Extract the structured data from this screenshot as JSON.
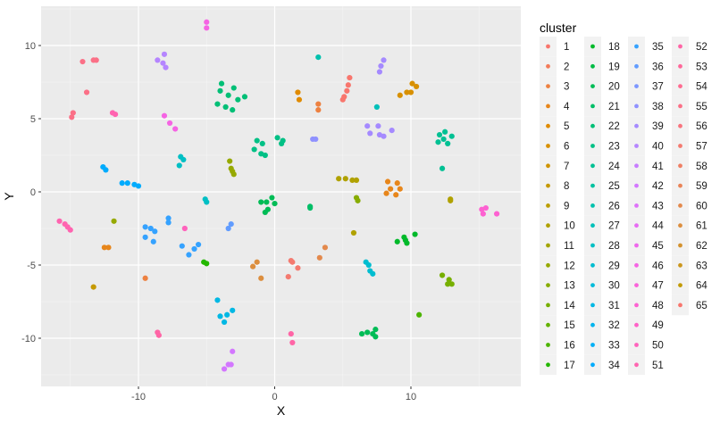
{
  "chart_data": {
    "type": "scatter",
    "title": "",
    "xlabel": "X",
    "ylabel": "Y",
    "xlim": [
      -17.2,
      18
    ],
    "ylim": [
      -13.2,
      12.8
    ],
    "x_ticks": [
      -10,
      0,
      10
    ],
    "y_ticks": [
      -10,
      -5,
      0,
      5,
      10
    ],
    "grid": true,
    "legend_title": "cluster",
    "legend_position": "right",
    "clusters": [
      "1",
      "2",
      "3",
      "4",
      "5",
      "6",
      "7",
      "8",
      "9",
      "10",
      "11",
      "12",
      "13",
      "14",
      "15",
      "16",
      "17",
      "18",
      "19",
      "20",
      "21",
      "22",
      "23",
      "24",
      "25",
      "26",
      "27",
      "28",
      "29",
      "30",
      "31",
      "32",
      "33",
      "34",
      "35",
      "36",
      "37",
      "38",
      "39",
      "40",
      "41",
      "42",
      "43",
      "44",
      "45",
      "46",
      "47",
      "48",
      "49",
      "50",
      "51",
      "52",
      "53",
      "54",
      "55",
      "56",
      "57",
      "58",
      "59",
      "60",
      "61",
      "62",
      "63",
      "64",
      "65"
    ],
    "colors": [
      "#F8766D",
      "#F37B59",
      "#ED8141",
      "#E7861B",
      "#E08B00",
      "#D89000",
      "#CF9400",
      "#C59900",
      "#BB9D00",
      "#B0A100",
      "#A3A500",
      "#96A900",
      "#87AC00",
      "#77AF00",
      "#64B200",
      "#4CB400",
      "#24B700",
      "#00B92A",
      "#00BB44",
      "#00BC56",
      "#00BE67",
      "#00BF76",
      "#00C085",
      "#00C093",
      "#00C1A0",
      "#00C1AD",
      "#00C0B9",
      "#00BFC4",
      "#00BDD0",
      "#00BBDA",
      "#00B8E4",
      "#00B4EE",
      "#00B0F6",
      "#00ABFD",
      "#35A2FF",
      "#619CFF",
      "#7C96FF",
      "#8F91FF",
      "#A58AFF",
      "#B585FF",
      "#C77CFF",
      "#D377FF",
      "#DE71F9",
      "#E76BF3",
      "#EE67EB",
      "#F564E3",
      "#FA62D9",
      "#FD61D1",
      "#FF61C7",
      "#FF62BC",
      "#FF64B0",
      "#FF65A6",
      "#FF689A",
      "#FF6C91",
      "#FB7087",
      "#F8747E",
      "#F47A70",
      "#EF7F64",
      "#E98458",
      "#E3894C",
      "#DC8E3E",
      "#D4922E",
      "#CB961D",
      "#C29A06",
      "#F8766D"
    ],
    "points": [
      {
        "c": "1",
        "x": 5.3,
        "y": 6.9
      },
      {
        "c": "1",
        "x": 5.5,
        "y": 7.8
      },
      {
        "c": "1",
        "x": 5.1,
        "y": 6.5
      },
      {
        "c": "1",
        "x": 5.0,
        "y": 6.3
      },
      {
        "c": "1",
        "x": 5.4,
        "y": 7.3
      },
      {
        "c": "3",
        "x": 3.2,
        "y": 6.0
      },
      {
        "c": "3",
        "x": 3.2,
        "y": 5.6
      },
      {
        "c": "5",
        "x": 1.7,
        "y": 6.8
      },
      {
        "c": "5",
        "x": 1.8,
        "y": 6.3
      },
      {
        "c": "6",
        "x": 9.2,
        "y": 6.6
      },
      {
        "c": "6",
        "x": 9.7,
        "y": 6.8
      },
      {
        "c": "6",
        "x": 10.0,
        "y": 6.8
      },
      {
        "c": "6",
        "x": 10.1,
        "y": 7.4
      },
      {
        "c": "6",
        "x": 10.4,
        "y": 7.2
      },
      {
        "c": "4",
        "x": 8.3,
        "y": 0.7
      },
      {
        "c": "4",
        "x": 9.0,
        "y": 0.6
      },
      {
        "c": "4",
        "x": 8.5,
        "y": 0.2
      },
      {
        "c": "4",
        "x": 9.2,
        "y": 0.2
      },
      {
        "c": "4",
        "x": 8.2,
        "y": -0.1
      },
      {
        "c": "4",
        "x": 8.9,
        "y": -0.2
      },
      {
        "c": "4",
        "x": -12.5,
        "y": -3.8
      },
      {
        "c": "4",
        "x": -12.2,
        "y": -3.8
      },
      {
        "c": "3",
        "x": -9.5,
        "y": -5.9
      },
      {
        "c": "8",
        "x": -13.3,
        "y": -6.5
      },
      {
        "c": "10",
        "x": 4.7,
        "y": 0.9
      },
      {
        "c": "10",
        "x": 5.2,
        "y": 0.9
      },
      {
        "c": "10",
        "x": 5.7,
        "y": 0.8
      },
      {
        "c": "10",
        "x": 6.0,
        "y": 0.8
      },
      {
        "c": "10",
        "x": 12.9,
        "y": -0.5
      },
      {
        "c": "10",
        "x": 12.9,
        "y": -0.6
      },
      {
        "c": "10",
        "x": 5.8,
        "y": -2.8
      },
      {
        "c": "12",
        "x": -3.3,
        "y": 2.1
      },
      {
        "c": "12",
        "x": -3.2,
        "y": 1.6
      },
      {
        "c": "12",
        "x": -3.1,
        "y": 1.4
      },
      {
        "c": "12",
        "x": -3.0,
        "y": 1.2
      },
      {
        "c": "12",
        "x": -11.8,
        "y": -2.0
      },
      {
        "c": "13",
        "x": 6.0,
        "y": -0.4
      },
      {
        "c": "13",
        "x": 6.1,
        "y": -0.6
      },
      {
        "c": "14",
        "x": 12.3,
        "y": -5.7
      },
      {
        "c": "14",
        "x": 12.8,
        "y": -6.0
      },
      {
        "c": "14",
        "x": 12.7,
        "y": -6.3
      },
      {
        "c": "14",
        "x": 13.0,
        "y": -6.3
      },
      {
        "c": "16",
        "x": 10.6,
        "y": -8.4
      },
      {
        "c": "17",
        "x": -5.2,
        "y": -4.8
      },
      {
        "c": "17",
        "x": -5.0,
        "y": -4.9
      },
      {
        "c": "18",
        "x": 9.0,
        "y": -3.4
      },
      {
        "c": "18",
        "x": 9.5,
        "y": -3.1
      },
      {
        "c": "18",
        "x": 9.7,
        "y": -3.5
      },
      {
        "c": "18",
        "x": 10.3,
        "y": -2.9
      },
      {
        "c": "18",
        "x": 9.6,
        "y": -3.3
      },
      {
        "c": "20",
        "x": -1.0,
        "y": -0.7
      },
      {
        "c": "20",
        "x": -0.6,
        "y": -0.7
      },
      {
        "c": "20",
        "x": -0.2,
        "y": -0.4
      },
      {
        "c": "20",
        "x": 0.0,
        "y": -0.8
      },
      {
        "c": "20",
        "x": -0.7,
        "y": -1.4
      },
      {
        "c": "20",
        "x": -0.5,
        "y": -1.2
      },
      {
        "c": "20",
        "x": 6.4,
        "y": -9.7
      },
      {
        "c": "20",
        "x": 6.8,
        "y": -9.6
      },
      {
        "c": "20",
        "x": 7.2,
        "y": -9.7
      },
      {
        "c": "20",
        "x": 7.4,
        "y": -9.4
      },
      {
        "c": "20",
        "x": 7.4,
        "y": -9.9
      },
      {
        "c": "21",
        "x": 2.6,
        "y": -1.0
      },
      {
        "c": "21",
        "x": 2.6,
        "y": -1.1
      },
      {
        "c": "22",
        "x": -3.9,
        "y": 7.4
      },
      {
        "c": "22",
        "x": -3.0,
        "y": 7.1
      },
      {
        "c": "22",
        "x": -4.0,
        "y": 6.9
      },
      {
        "c": "22",
        "x": -3.4,
        "y": 6.6
      },
      {
        "c": "22",
        "x": -2.2,
        "y": 6.5
      },
      {
        "c": "22",
        "x": -2.7,
        "y": 6.3
      },
      {
        "c": "22",
        "x": -4.2,
        "y": 6.0
      },
      {
        "c": "22",
        "x": -3.6,
        "y": 5.8
      },
      {
        "c": "22",
        "x": -3.1,
        "y": 5.6
      },
      {
        "c": "23",
        "x": -1.3,
        "y": 3.5
      },
      {
        "c": "23",
        "x": -0.9,
        "y": 3.3
      },
      {
        "c": "23",
        "x": -1.5,
        "y": 2.9
      },
      {
        "c": "23",
        "x": -1.0,
        "y": 2.6
      },
      {
        "c": "23",
        "x": -0.7,
        "y": 2.5
      },
      {
        "c": "23",
        "x": 0.2,
        "y": 3.7
      },
      {
        "c": "23",
        "x": 0.6,
        "y": 3.5
      },
      {
        "c": "23",
        "x": 0.5,
        "y": 3.3
      },
      {
        "c": "24",
        "x": 12.1,
        "y": 3.9
      },
      {
        "c": "24",
        "x": 12.5,
        "y": 4.1
      },
      {
        "c": "24",
        "x": 13.0,
        "y": 3.8
      },
      {
        "c": "24",
        "x": 12.0,
        "y": 3.4
      },
      {
        "c": "24",
        "x": 12.4,
        "y": 3.6
      },
      {
        "c": "24",
        "x": 12.7,
        "y": 3.3
      },
      {
        "c": "24",
        "x": 12.3,
        "y": 1.6
      },
      {
        "c": "26",
        "x": 3.2,
        "y": 9.2
      },
      {
        "c": "27",
        "x": 7.5,
        "y": 5.8
      },
      {
        "c": "28",
        "x": -6.9,
        "y": 2.4
      },
      {
        "c": "28",
        "x": -6.7,
        "y": 2.2
      },
      {
        "c": "28",
        "x": -7.0,
        "y": 1.8
      },
      {
        "c": "28",
        "x": -5.1,
        "y": -0.5
      },
      {
        "c": "28",
        "x": -5.0,
        "y": -0.7
      },
      {
        "c": "29",
        "x": 6.7,
        "y": -4.8
      },
      {
        "c": "29",
        "x": 6.9,
        "y": -5.0
      },
      {
        "c": "29",
        "x": 7.0,
        "y": -5.4
      },
      {
        "c": "29",
        "x": 7.2,
        "y": -5.6
      },
      {
        "c": "31",
        "x": -4.2,
        "y": -7.4
      },
      {
        "c": "31",
        "x": -3.1,
        "y": -8.1
      },
      {
        "c": "31",
        "x": -3.5,
        "y": -8.4
      },
      {
        "c": "31",
        "x": -4.0,
        "y": -8.5
      },
      {
        "c": "31",
        "x": -3.7,
        "y": -8.9
      },
      {
        "c": "34",
        "x": -12.6,
        "y": 1.7
      },
      {
        "c": "34",
        "x": -12.4,
        "y": 1.5
      },
      {
        "c": "34",
        "x": -11.2,
        "y": 0.6
      },
      {
        "c": "34",
        "x": -10.8,
        "y": 0.6
      },
      {
        "c": "34",
        "x": -10.3,
        "y": 0.5
      },
      {
        "c": "34",
        "x": -10.0,
        "y": 0.4
      },
      {
        "c": "35",
        "x": -9.5,
        "y": -2.4
      },
      {
        "c": "35",
        "x": -9.1,
        "y": -2.5
      },
      {
        "c": "35",
        "x": -8.8,
        "y": -2.7
      },
      {
        "c": "35",
        "x": -9.5,
        "y": -3.1
      },
      {
        "c": "35",
        "x": -8.9,
        "y": -3.4
      },
      {
        "c": "35",
        "x": -7.8,
        "y": -1.8
      },
      {
        "c": "35",
        "x": -7.8,
        "y": -2.1
      },
      {
        "c": "35",
        "x": -6.8,
        "y": -3.7
      },
      {
        "c": "35",
        "x": -5.9,
        "y": -3.9
      },
      {
        "c": "35",
        "x": -6.3,
        "y": -4.3
      },
      {
        "c": "35",
        "x": -5.6,
        "y": -3.6
      },
      {
        "c": "36",
        "x": -3.2,
        "y": -2.2
      },
      {
        "c": "36",
        "x": -3.4,
        "y": -2.5
      },
      {
        "c": "38",
        "x": 2.8,
        "y": 3.6
      },
      {
        "c": "38",
        "x": 3.0,
        "y": 3.6
      },
      {
        "c": "39",
        "x": 8.0,
        "y": 9.0
      },
      {
        "c": "39",
        "x": 7.8,
        "y": 8.6
      },
      {
        "c": "39",
        "x": 7.7,
        "y": 8.2
      },
      {
        "c": "39",
        "x": 6.8,
        "y": 4.5
      },
      {
        "c": "39",
        "x": 7.6,
        "y": 4.5
      },
      {
        "c": "39",
        "x": 7.0,
        "y": 4.0
      },
      {
        "c": "39",
        "x": 7.7,
        "y": 3.9
      },
      {
        "c": "39",
        "x": 8.0,
        "y": 3.8
      },
      {
        "c": "39",
        "x": 8.6,
        "y": 4.2
      },
      {
        "c": "40",
        "x": -8.6,
        "y": 9.0
      },
      {
        "c": "40",
        "x": -8.1,
        "y": 9.4
      },
      {
        "c": "40",
        "x": -8.2,
        "y": 8.8
      },
      {
        "c": "40",
        "x": -8.0,
        "y": 8.5
      },
      {
        "c": "42",
        "x": -3.4,
        "y": -11.8
      },
      {
        "c": "42",
        "x": -3.2,
        "y": -11.8
      },
      {
        "c": "42",
        "x": -3.7,
        "y": -12.1
      },
      {
        "c": "42",
        "x": -3.1,
        "y": -10.9
      },
      {
        "c": "46",
        "x": -5.0,
        "y": 11.6
      },
      {
        "c": "46",
        "x": -5.0,
        "y": 11.2
      },
      {
        "c": "46",
        "x": -8.1,
        "y": 5.2
      },
      {
        "c": "46",
        "x": -7.7,
        "y": 4.7
      },
      {
        "c": "46",
        "x": -7.3,
        "y": 4.3
      },
      {
        "c": "48",
        "x": 15.2,
        "y": -1.2
      },
      {
        "c": "48",
        "x": 15.5,
        "y": -1.1
      },
      {
        "c": "48",
        "x": 15.3,
        "y": -1.5
      },
      {
        "c": "48",
        "x": 16.3,
        "y": -1.5
      },
      {
        "c": "50",
        "x": -6.6,
        "y": -2.5
      },
      {
        "c": "51",
        "x": -15.8,
        "y": -2.0
      },
      {
        "c": "51",
        "x": -15.4,
        "y": -2.2
      },
      {
        "c": "51",
        "x": -15.2,
        "y": -2.4
      },
      {
        "c": "51",
        "x": -15.0,
        "y": -2.6
      },
      {
        "c": "51",
        "x": -11.9,
        "y": 5.4
      },
      {
        "c": "51",
        "x": -11.7,
        "y": 5.3
      },
      {
        "c": "52",
        "x": -8.6,
        "y": -9.6
      },
      {
        "c": "52",
        "x": -8.5,
        "y": -9.8
      },
      {
        "c": "52",
        "x": 1.2,
        "y": -9.7
      },
      {
        "c": "52",
        "x": 1.3,
        "y": -10.3
      },
      {
        "c": "55",
        "x": -14.1,
        "y": 8.9
      },
      {
        "c": "55",
        "x": -13.3,
        "y": 9.0
      },
      {
        "c": "55",
        "x": -13.1,
        "y": 9.0
      },
      {
        "c": "55",
        "x": -13.8,
        "y": 6.8
      },
      {
        "c": "55",
        "x": -14.9,
        "y": 5.1
      },
      {
        "c": "55",
        "x": -14.8,
        "y": 5.4
      },
      {
        "c": "57",
        "x": 1.3,
        "y": -4.8
      },
      {
        "c": "57",
        "x": 1.2,
        "y": -4.7
      },
      {
        "c": "57",
        "x": 1.7,
        "y": -5.2
      },
      {
        "c": "57",
        "x": 1.0,
        "y": -5.8
      },
      {
        "c": "60",
        "x": 3.3,
        "y": -4.5
      },
      {
        "c": "60",
        "x": 3.7,
        "y": -3.8
      },
      {
        "c": "61",
        "x": -1.3,
        "y": -4.8
      },
      {
        "c": "61",
        "x": -1.6,
        "y": -5.1
      },
      {
        "c": "61",
        "x": -1.0,
        "y": -5.9
      }
    ]
  }
}
